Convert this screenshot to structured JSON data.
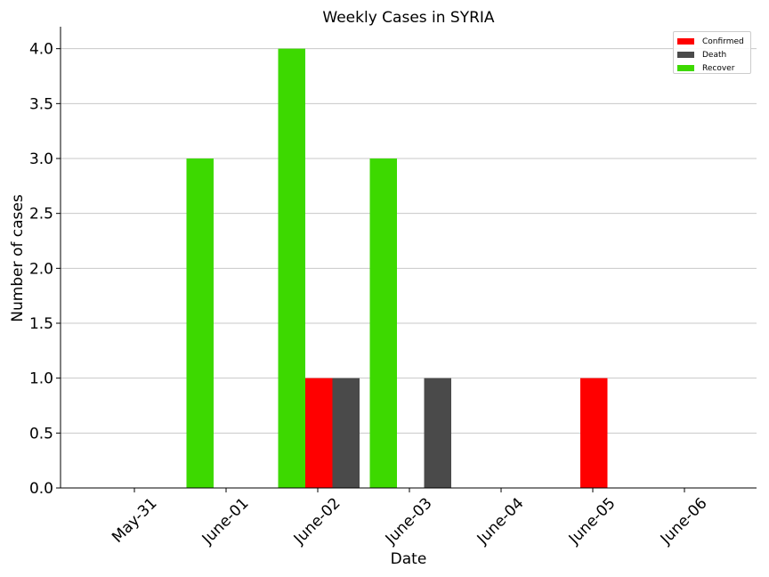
{
  "chart_data": {
    "type": "bar",
    "title": "Weekly Cases in SYRIA",
    "xlabel": "Date",
    "ylabel": "Number of cases",
    "categories": [
      "May-31",
      "June-01",
      "June-02",
      "June-03",
      "June-04",
      "June-05",
      "June-06"
    ],
    "series": [
      {
        "name": "Confirmed",
        "color": "#ff0000",
        "values": [
          0,
          0,
          1,
          0,
          0,
          1,
          0
        ]
      },
      {
        "name": "Death",
        "color": "#4a4a4a",
        "values": [
          0,
          0,
          1,
          1,
          0,
          0,
          0
        ]
      },
      {
        "name": "Recover",
        "color": "#3dd900",
        "values": [
          0,
          3,
          4,
          3,
          0,
          0,
          0
        ]
      }
    ],
    "ylim": [
      0,
      4.2
    ],
    "yticks": [
      "0.0",
      "0.5",
      "1.0",
      "1.5",
      "2.0",
      "2.5",
      "3.0",
      "3.5",
      "4.0"
    ],
    "grid": "horizontal",
    "legend": "top-right"
  }
}
